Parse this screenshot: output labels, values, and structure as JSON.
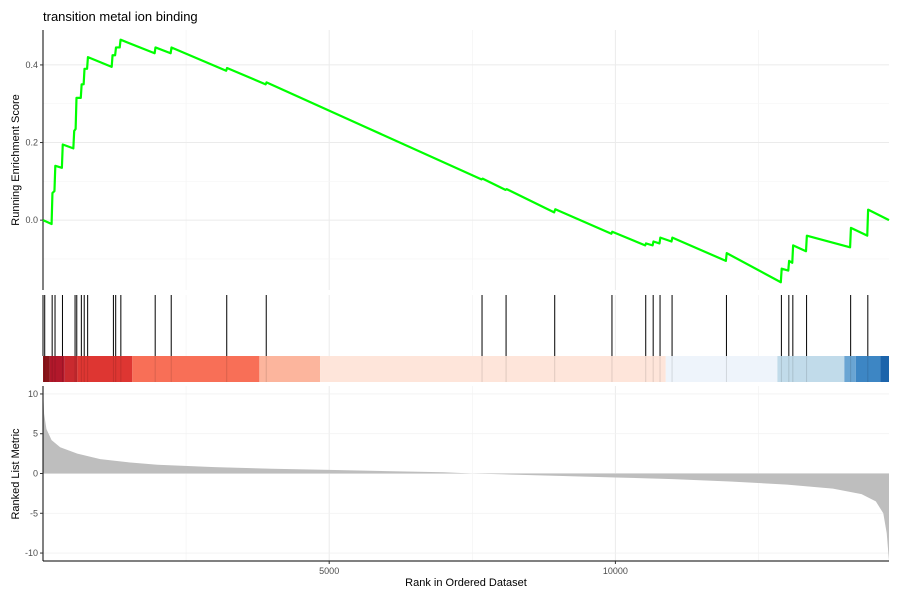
{
  "chart_data": {
    "type": "line",
    "title": "transition metal ion binding",
    "xlabel": "Rank in Ordered Dataset",
    "xlim": [
      0,
      14780
    ],
    "x_ticks": [
      5000,
      10000
    ],
    "grid": true,
    "panels": {
      "enrichment": {
        "ylabel": "Running Enrichment Score",
        "ylim": [
          -0.18,
          0.49
        ],
        "y_ticks": [
          0.0,
          0.2,
          0.4
        ],
        "line_color": "#00ff00",
        "curve": [
          [
            0,
            0.0
          ],
          [
            150,
            -0.01
          ],
          [
            165,
            0.07
          ],
          [
            200,
            0.075
          ],
          [
            215,
            0.14
          ],
          [
            330,
            0.135
          ],
          [
            345,
            0.195
          ],
          [
            530,
            0.185
          ],
          [
            545,
            0.23
          ],
          [
            570,
            0.235
          ],
          [
            585,
            0.315
          ],
          [
            660,
            0.315
          ],
          [
            675,
            0.35
          ],
          [
            710,
            0.35
          ],
          [
            725,
            0.39
          ],
          [
            770,
            0.39
          ],
          [
            785,
            0.42
          ],
          [
            1200,
            0.395
          ],
          [
            1215,
            0.425
          ],
          [
            1260,
            0.425
          ],
          [
            1275,
            0.445
          ],
          [
            1340,
            0.445
          ],
          [
            1355,
            0.465
          ],
          [
            1950,
            0.43
          ],
          [
            1965,
            0.445
          ],
          [
            2230,
            0.43
          ],
          [
            2245,
            0.445
          ],
          [
            3200,
            0.385
          ],
          [
            3215,
            0.392
          ],
          [
            3890,
            0.35
          ],
          [
            3905,
            0.355
          ],
          [
            7660,
            0.105
          ],
          [
            7680,
            0.107
          ],
          [
            8080,
            0.078
          ],
          [
            8100,
            0.08
          ],
          [
            8930,
            0.02
          ],
          [
            8950,
            0.028
          ],
          [
            9930,
            -0.035
          ],
          [
            9945,
            -0.03
          ],
          [
            10520,
            -0.065
          ],
          [
            10535,
            -0.06
          ],
          [
            10650,
            -0.065
          ],
          [
            10665,
            -0.055
          ],
          [
            10770,
            -0.06
          ],
          [
            10785,
            -0.045
          ],
          [
            10980,
            -0.055
          ],
          [
            10995,
            -0.045
          ],
          [
            11930,
            -0.105
          ],
          [
            11945,
            -0.085
          ],
          [
            12890,
            -0.16
          ],
          [
            12905,
            -0.125
          ],
          [
            13020,
            -0.13
          ],
          [
            13035,
            -0.105
          ],
          [
            13090,
            -0.11
          ],
          [
            13105,
            -0.065
          ],
          [
            13330,
            -0.08
          ],
          [
            13345,
            -0.04
          ],
          [
            14100,
            -0.07
          ],
          [
            14115,
            -0.02
          ],
          [
            14400,
            -0.04
          ],
          [
            14415,
            0.027
          ],
          [
            14780,
            0.0
          ]
        ]
      },
      "hits": {
        "ranks": [
          30,
          160,
          210,
          340,
          560,
          590,
          670,
          720,
          780,
          1230,
          1270,
          1360,
          1960,
          2240,
          3210,
          3900,
          7670,
          8090,
          8940,
          9940,
          10530,
          10660,
          10780,
          10990,
          11940,
          12900,
          13030,
          13100,
          13340,
          14110,
          14410
        ]
      },
      "rank_colorbar": {
        "bands": [
          {
            "start": 0,
            "end": 120,
            "color": "#8a1419"
          },
          {
            "start": 120,
            "end": 380,
            "color": "#b2182b"
          },
          {
            "start": 380,
            "end": 600,
            "color": "#c92a2f"
          },
          {
            "start": 600,
            "end": 1560,
            "color": "#de3632"
          },
          {
            "start": 1560,
            "end": 3780,
            "color": "#f86f57"
          },
          {
            "start": 3780,
            "end": 4840,
            "color": "#fcb59d"
          },
          {
            "start": 4840,
            "end": 10880,
            "color": "#fee5da"
          },
          {
            "start": 10880,
            "end": 12830,
            "color": "#eef4fb"
          },
          {
            "start": 12830,
            "end": 14000,
            "color": "#c1dbea"
          },
          {
            "start": 14000,
            "end": 14200,
            "color": "#6aa5d3"
          },
          {
            "start": 14200,
            "end": 14630,
            "color": "#3d86c4"
          },
          {
            "start": 14630,
            "end": 14780,
            "color": "#1c64ab"
          }
        ]
      },
      "ranked_metric": {
        "ylabel": "Ranked List Metric",
        "ylim": [
          -11,
          11
        ],
        "y_ticks": [
          10,
          5,
          0,
          -5,
          -10
        ],
        "fill_color": "#bebebe",
        "curve": [
          [
            0,
            10.5
          ],
          [
            20,
            7.5
          ],
          [
            60,
            5.6
          ],
          [
            150,
            4.2
          ],
          [
            300,
            3.3
          ],
          [
            600,
            2.5
          ],
          [
            1000,
            1.8
          ],
          [
            1500,
            1.4
          ],
          [
            2000,
            1.1
          ],
          [
            3000,
            0.8
          ],
          [
            4000,
            0.6
          ],
          [
            5000,
            0.45
          ],
          [
            6000,
            0.3
          ],
          [
            7000,
            0.15
          ],
          [
            7500,
            0.0
          ],
          [
            8000,
            -0.1
          ],
          [
            9000,
            -0.3
          ],
          [
            10000,
            -0.5
          ],
          [
            11000,
            -0.7
          ],
          [
            12000,
            -1.0
          ],
          [
            13000,
            -1.4
          ],
          [
            13800,
            -1.9
          ],
          [
            14300,
            -2.6
          ],
          [
            14550,
            -3.5
          ],
          [
            14680,
            -5.0
          ],
          [
            14740,
            -7.5
          ],
          [
            14780,
            -11.0
          ]
        ]
      }
    }
  }
}
